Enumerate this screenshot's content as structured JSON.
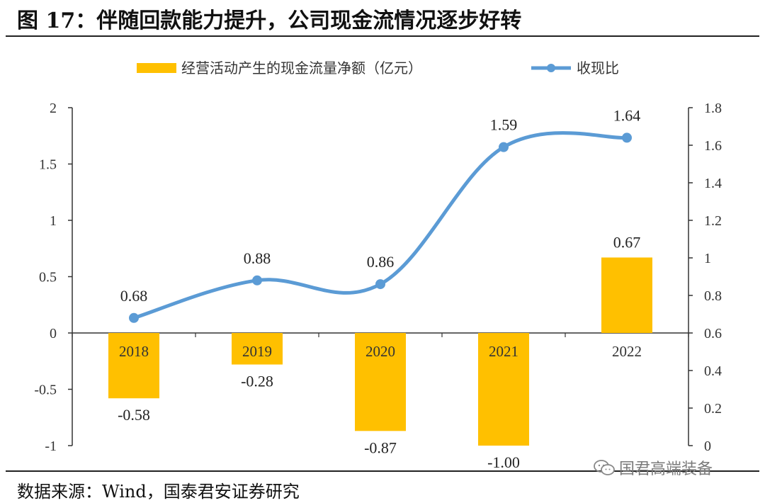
{
  "figure": {
    "title": "图 17：伴随回款能力提升，公司现金流情况逐步好转",
    "source": "数据来源：Wind，国泰君安证券研究",
    "watermark": "国君高端装备"
  },
  "chart_data": {
    "type": "bar+line",
    "categories": [
      "2018",
      "2019",
      "2020",
      "2021",
      "2022"
    ],
    "series": [
      {
        "name": "经营活动产生的现金流量净额（亿元）",
        "kind": "bar",
        "axis": "left",
        "color": "#FFC000",
        "values": [
          -0.58,
          -0.28,
          -0.87,
          -1.0,
          0.67
        ],
        "labels": [
          "-0.58",
          "-0.28",
          "-0.87",
          "-1.00",
          "0.67"
        ]
      },
      {
        "name": "收现比",
        "kind": "line",
        "axis": "right",
        "color": "#5B9BD5",
        "values": [
          0.68,
          0.88,
          0.86,
          1.59,
          1.64
        ],
        "labels": [
          "0.68",
          "0.88",
          "0.86",
          "1.59",
          "1.64"
        ]
      }
    ],
    "left_axis": {
      "min": -1,
      "max": 2,
      "ticks": [
        -1,
        -0.5,
        0,
        0.5,
        1,
        1.5,
        2
      ],
      "tick_labels": [
        "-1",
        "-0.5",
        "0",
        "0.5",
        "1",
        "1.5",
        "2"
      ]
    },
    "right_axis": {
      "min": 0,
      "max": 1.8,
      "ticks": [
        0,
        0.2,
        0.4,
        0.6,
        0.8,
        1,
        1.2,
        1.4,
        1.6,
        1.8
      ],
      "tick_labels": [
        "0",
        "0.2",
        "0.4",
        "0.6",
        "0.8",
        "1",
        "1.2",
        "1.4",
        "1.6",
        "1.8"
      ]
    },
    "legend_position": "top",
    "grid": false
  }
}
